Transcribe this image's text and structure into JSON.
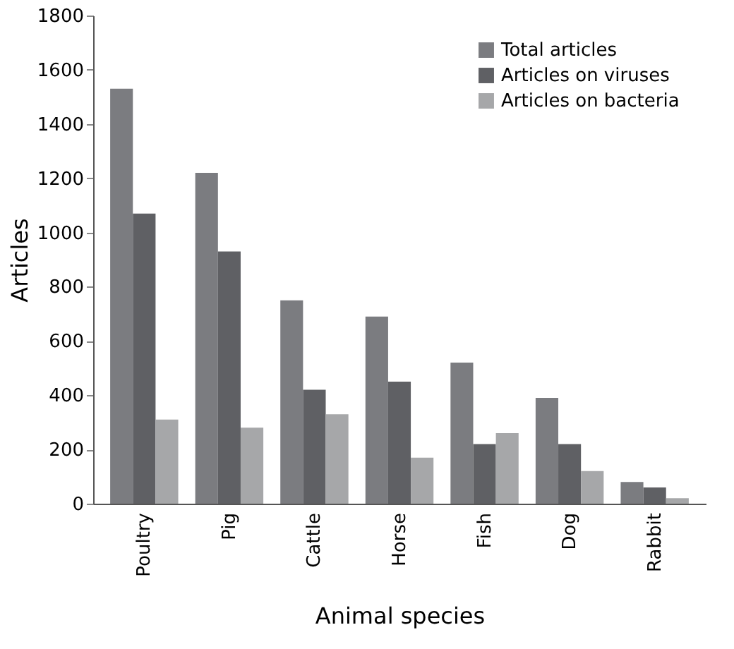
{
  "chart_data": {
    "type": "bar",
    "xlabel": "Animal species",
    "ylabel": "Articles",
    "categories": [
      "Poultry",
      "Pig",
      "Cattle",
      "Horse",
      "Fish",
      "Dog",
      "Rabbit"
    ],
    "series": [
      {
        "name": "Total articles",
        "color": "#7b7c80",
        "values": [
          1530,
          1220,
          750,
          690,
          520,
          390,
          80
        ]
      },
      {
        "name": "Articles on viruses",
        "color": "#5f6064",
        "values": [
          1070,
          930,
          420,
          450,
          220,
          220,
          60
        ]
      },
      {
        "name": "Articles on bacteria",
        "color": "#a6a7a9",
        "values": [
          310,
          280,
          330,
          170,
          260,
          120,
          20
        ]
      }
    ],
    "ylim": [
      0,
      1800
    ],
    "yticks": [
      0,
      200,
      400,
      600,
      800,
      1000,
      1200,
      1400,
      1600,
      1800
    ],
    "grid": false,
    "legend": "top right"
  }
}
